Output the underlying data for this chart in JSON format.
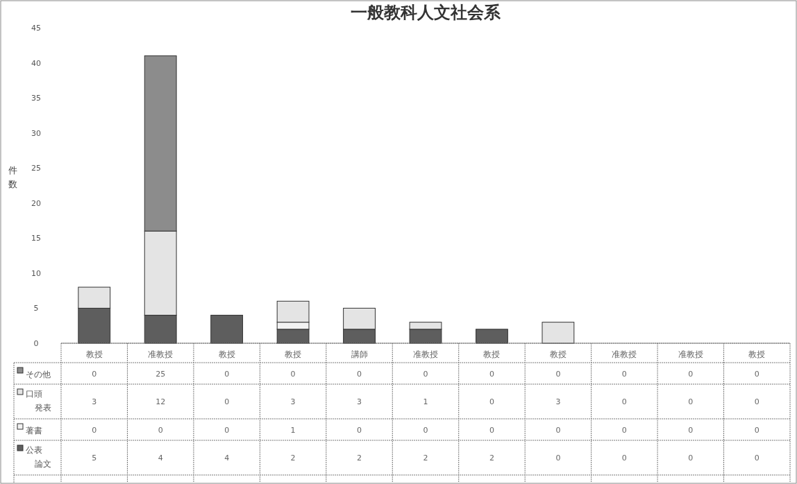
{
  "chart_data": {
    "type": "bar",
    "stacked": true,
    "title": "一般教科人文社会系",
    "ylabel": "件数",
    "categories": [
      "教授",
      "准教授",
      "教授",
      "教授",
      "講師",
      "准教授",
      "教授",
      "教授",
      "准教授",
      "准教授",
      "教授"
    ],
    "series": [
      {
        "name": "公表論文",
        "color": "#5e5e5e",
        "values": [
          5,
          4,
          4,
          2,
          2,
          2,
          2,
          0,
          0,
          0,
          0
        ]
      },
      {
        "name": "著書",
        "color": "#f2f2f2",
        "values": [
          0,
          0,
          0,
          1,
          0,
          0,
          0,
          0,
          0,
          0,
          0
        ]
      },
      {
        "name": "口頭発表",
        "color": "#e4e4e4",
        "values": [
          3,
          12,
          0,
          3,
          3,
          1,
          0,
          3,
          0,
          0,
          0
        ]
      },
      {
        "name": "その他",
        "color": "#8c8c8c",
        "values": [
          0,
          25,
          0,
          0,
          0,
          0,
          0,
          0,
          0,
          0,
          0
        ]
      }
    ],
    "ylim": [
      0,
      45
    ],
    "yticks": [
      0,
      5,
      10,
      15,
      20,
      25,
      30,
      35,
      40,
      45
    ],
    "data_labels": true,
    "legend": "bottom"
  }
}
